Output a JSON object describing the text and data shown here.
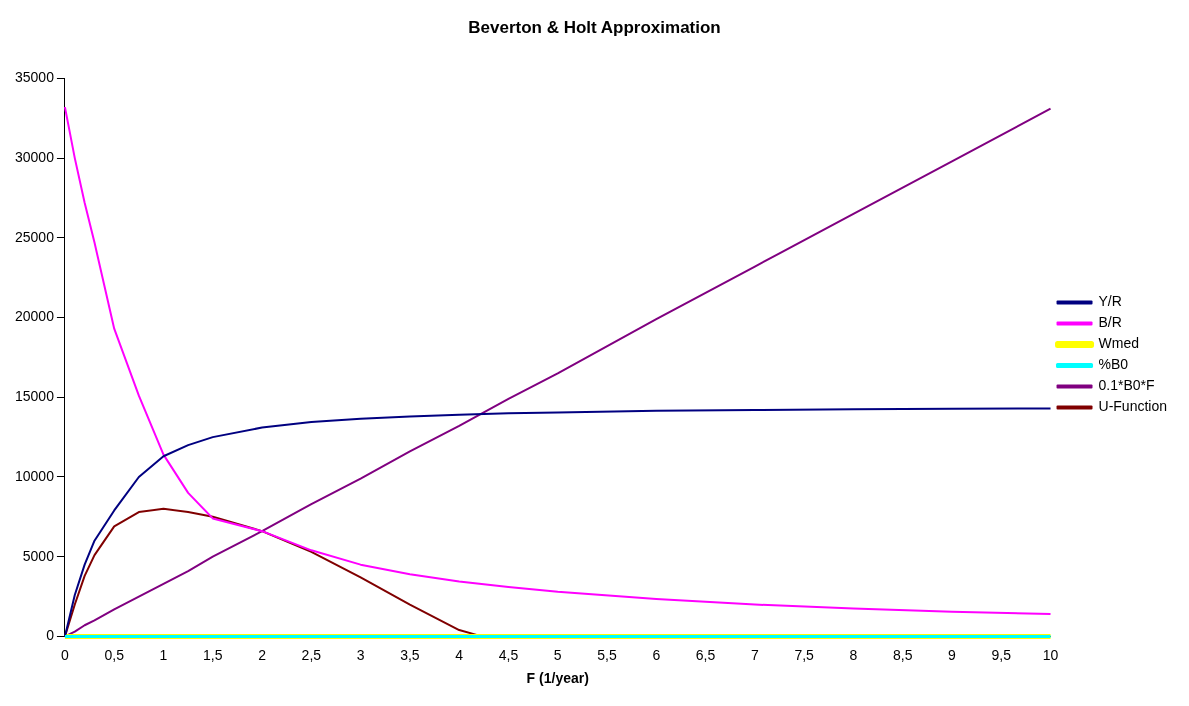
{
  "chart_data": {
    "type": "line",
    "title": "Beverton & Holt Approximation",
    "xlabel": "F (1/year)",
    "x": [
      0,
      0.1,
      0.2,
      0.3,
      0.5,
      0.75,
      1,
      1.25,
      1.5,
      2,
      2.5,
      3,
      3.5,
      4,
      4.5,
      5,
      6,
      7,
      8,
      9,
      10
    ],
    "series": [
      {
        "name": "Y/R",
        "color": "#000080",
        "values": [
          0,
          2600,
          4500,
          6000,
          7900,
          10000,
          11300,
          12000,
          12500,
          13100,
          13450,
          13650,
          13800,
          13900,
          14000,
          14050,
          14150,
          14200,
          14250,
          14280,
          14300
        ]
      },
      {
        "name": "B/R",
        "color": "#ff00ff",
        "values": [
          33200,
          30000,
          27200,
          24700,
          19300,
          15100,
          11400,
          9000,
          7400,
          6600,
          5400,
          4500,
          3900,
          3450,
          3100,
          2800,
          2350,
          2000,
          1750,
          1550,
          1400
        ]
      },
      {
        "name": "Wmed",
        "color": "#ffff00",
        "values": [
          0,
          0,
          0,
          0,
          0,
          0,
          0,
          0,
          0,
          0,
          0,
          0,
          0,
          0,
          0,
          0,
          0,
          0,
          0,
          0,
          0
        ]
      },
      {
        "name": "%B0",
        "color": "#00ffff",
        "values": [
          0,
          0,
          0,
          0,
          0,
          0,
          0,
          0,
          0,
          0,
          0,
          0,
          0,
          0,
          0,
          0,
          0,
          0,
          0,
          0,
          0
        ]
      },
      {
        "name": "0.1*B0*F",
        "color": "#800080",
        "values": [
          0,
          300,
          700,
          1000,
          1700,
          2500,
          3300,
          4100,
          5000,
          6600,
          8300,
          9900,
          11600,
          13200,
          14900,
          16500,
          19900,
          23200,
          26500,
          29800,
          33100
        ]
      },
      {
        "name": "U-Function",
        "color": "#800000",
        "x": [
          0,
          0.1,
          0.2,
          0.3,
          0.5,
          0.75,
          1,
          1.25,
          1.5,
          2,
          2.5,
          3,
          3.5,
          4,
          4.23
        ],
        "values": [
          0,
          2000,
          3800,
          5100,
          6900,
          7800,
          8000,
          7800,
          7500,
          6600,
          5300,
          3700,
          2000,
          400,
          0
        ]
      }
    ],
    "xlim": [
      0,
      10
    ],
    "xticks": [
      0,
      {
        "value": 0.5,
        "label": "0,5"
      },
      1,
      {
        "value": 1.5,
        "label": "1,5"
      },
      2,
      {
        "value": 2.5,
        "label": "2,5"
      },
      3,
      {
        "value": 3.5,
        "label": "3,5"
      },
      4,
      {
        "value": 4.5,
        "label": "4,5"
      },
      5,
      {
        "value": 5.5,
        "label": "5,5"
      },
      6,
      {
        "value": 6.5,
        "label": "6,5"
      },
      7,
      {
        "value": 7.5,
        "label": "7,5"
      },
      8,
      {
        "value": 8.5,
        "label": "8,5"
      },
      9,
      {
        "value": 9.5,
        "label": "9,5"
      },
      10
    ],
    "ylim": [
      0,
      35000
    ],
    "yticks": [
      0,
      5000,
      10000,
      15000,
      20000,
      25000,
      30000,
      35000
    ],
    "grid": false,
    "legend": "right",
    "marker": "none",
    "line_style": "solid"
  }
}
